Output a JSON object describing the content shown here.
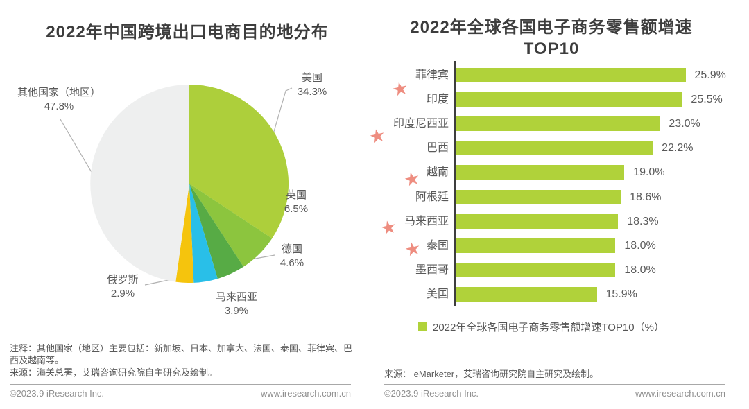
{
  "left_panel": {
    "note": "注释：其他国家（地区）主要包括：新加坡、日本、加拿大、法国、泰国、菲律宾、巴西及越南等。",
    "source": "来源：海关总署，艾瑞咨询研究院自主研究及绘制。"
  },
  "right_panel": {
    "title_line1": "2022年全球各国电子商务零售额增速",
    "title_line2": "TOP10",
    "legend": "2022年全球各国电子商务零售额增速TOP10（%）",
    "source": "来源： eMarketer，艾瑞咨询研究院自主研究及绘制。"
  },
  "footer": {
    "copyright": "©2023.9 iResearch Inc.",
    "website": "www.iresearch.com.cn"
  },
  "colors": {
    "bar_green": "#b0d23a",
    "star_pink": "#ee8d80",
    "axis_gray": "#3e3e3e",
    "title_gray": "#3d3d3d",
    "text_gray": "#595959",
    "footer_gray": "#8f8f8f"
  },
  "chart_data": [
    {
      "type": "pie",
      "title": "2022年中国跨境出口电商目的地分布",
      "labels": [
        "美国",
        "英国",
        "德国",
        "马来西亚",
        "俄罗斯",
        "其他国家（地区）"
      ],
      "values": [
        34.3,
        6.5,
        4.6,
        3.9,
        2.9,
        47.8
      ],
      "display": [
        "34.3%",
        "6.5%",
        "4.6%",
        "3.9%",
        "2.9%",
        "47.8%"
      ],
      "colors": [
        "#adcf3b",
        "#8cc53e",
        "#57ab45",
        "#29bfe8",
        "#f5c40d",
        "#eeefef"
      ],
      "start_angle": "12-oclock",
      "direction": "clockwise",
      "unit": "%"
    },
    {
      "type": "bar",
      "orientation": "horizontal",
      "title": "2022年全球各国电子商务零售额增速TOP10",
      "categories": [
        "菲律宾",
        "印度",
        "印度尼西亚",
        "巴西",
        "越南",
        "阿根廷",
        "马来西亚",
        "泰国",
        "墨西哥",
        "美国"
      ],
      "values": [
        25.9,
        25.5,
        23.0,
        22.2,
        19.0,
        18.6,
        18.3,
        18.0,
        18.0,
        15.9
      ],
      "display": [
        "25.9%",
        "25.5%",
        "23.0%",
        "22.2%",
        "19.0%",
        "18.6%",
        "18.3%",
        "18.0%",
        "18.0%",
        "15.9%"
      ],
      "starred_categories": [
        "菲律宾",
        "印度尼西亚",
        "越南",
        "马来西亚",
        "泰国"
      ],
      "bar_color": "#b0d23a",
      "xlim": [
        0,
        27
      ],
      "unit": "%",
      "legend": "2022年全球各国电子商务零售额增速TOP10（%）",
      "legend_position": "bottom"
    }
  ]
}
